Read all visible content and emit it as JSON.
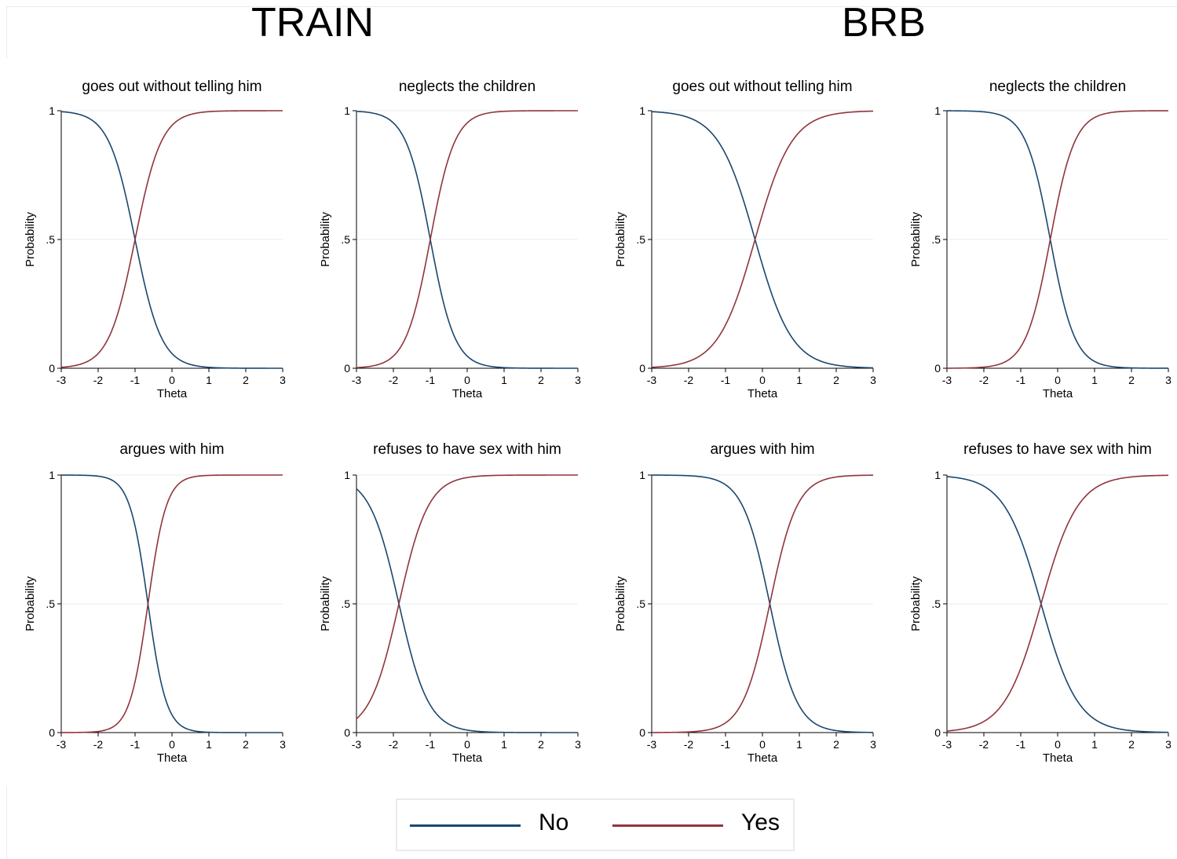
{
  "groups": [
    "TRAIN",
    "BRB"
  ],
  "legend": {
    "items": [
      {
        "label": "No",
        "color": "#1a476f"
      },
      {
        "label": "Yes",
        "color": "#90353b"
      }
    ]
  },
  "chart_data": [
    {
      "type": "line",
      "group": "TRAIN",
      "title": "goes out without telling him",
      "xlabel": "Theta",
      "ylabel": "Probability",
      "xlim": [
        -3,
        3
      ],
      "ylim": [
        0,
        1
      ],
      "xticks": [
        "-3",
        "-2",
        "-1",
        "0",
        "1",
        "2",
        "3"
      ],
      "yticks": [
        "0",
        ".5",
        "1"
      ],
      "series": [
        {
          "name": "No",
          "curve": "decreasing",
          "a": 2.8,
          "b": -1.0
        },
        {
          "name": "Yes",
          "curve": "increasing",
          "a": 2.8,
          "b": -1.0
        }
      ]
    },
    {
      "type": "line",
      "group": "TRAIN",
      "title": "neglects the children",
      "xlabel": "Theta",
      "ylabel": "Probability",
      "xlim": [
        -3,
        3
      ],
      "ylim": [
        0,
        1
      ],
      "xticks": [
        "-3",
        "-2",
        "-1",
        "0",
        "1",
        "2",
        "3"
      ],
      "yticks": [
        "0",
        ".5",
        "1"
      ],
      "series": [
        {
          "name": "No",
          "curve": "decreasing",
          "a": 3.0,
          "b": -1.0
        },
        {
          "name": "Yes",
          "curve": "increasing",
          "a": 3.0,
          "b": -1.0
        }
      ]
    },
    {
      "type": "line",
      "group": "BRB",
      "title": "goes out without telling him",
      "xlabel": "Theta",
      "ylabel": "Probability",
      "xlim": [
        -3,
        3
      ],
      "ylim": [
        0,
        1
      ],
      "xticks": [
        "-3",
        "-2",
        "-1",
        "0",
        "1",
        "2",
        "3"
      ],
      "yticks": [
        "0",
        ".5",
        "1"
      ],
      "series": [
        {
          "name": "No",
          "curve": "decreasing",
          "a": 2.0,
          "b": -0.2
        },
        {
          "name": "Yes",
          "curve": "increasing",
          "a": 2.0,
          "b": -0.2
        }
      ]
    },
    {
      "type": "line",
      "group": "BRB",
      "title": "neglects the children",
      "xlabel": "Theta",
      "ylabel": "Probability",
      "xlim": [
        -3,
        3
      ],
      "ylim": [
        0,
        1
      ],
      "xticks": [
        "-3",
        "-2",
        "-1",
        "0",
        "1",
        "2",
        "3"
      ],
      "yticks": [
        "0",
        ".5",
        "1"
      ],
      "series": [
        {
          "name": "No",
          "curve": "decreasing",
          "a": 3.0,
          "b": -0.2
        },
        {
          "name": "Yes",
          "curve": "increasing",
          "a": 3.0,
          "b": -0.2
        }
      ]
    },
    {
      "type": "line",
      "group": "TRAIN",
      "title": "argues with him",
      "xlabel": "Theta",
      "ylabel": "Probability",
      "xlim": [
        -3,
        3
      ],
      "ylim": [
        0,
        1
      ],
      "xticks": [
        "-3",
        "-2",
        "-1",
        "0",
        "1",
        "2",
        "3"
      ],
      "yticks": [
        "0",
        ".5",
        "1"
      ],
      "series": [
        {
          "name": "No",
          "curve": "decreasing",
          "a": 4.0,
          "b": -0.65
        },
        {
          "name": "Yes",
          "curve": "increasing",
          "a": 4.0,
          "b": -0.65
        }
      ]
    },
    {
      "type": "line",
      "group": "TRAIN",
      "title": "refuses to have sex with him",
      "xlabel": "Theta",
      "ylabel": "Probability",
      "xlim": [
        -3,
        3
      ],
      "ylim": [
        0,
        1
      ],
      "xticks": [
        "-3",
        "-2",
        "-1",
        "0",
        "1",
        "2",
        "3"
      ],
      "yticks": [
        "0",
        ".5",
        "1"
      ],
      "series": [
        {
          "name": "No",
          "curve": "decreasing",
          "a": 2.5,
          "b": -1.85
        },
        {
          "name": "Yes",
          "curve": "increasing",
          "a": 2.5,
          "b": -1.85
        }
      ]
    },
    {
      "type": "line",
      "group": "BRB",
      "title": "argues with him",
      "xlabel": "Theta",
      "ylabel": "Probability",
      "xlim": [
        -3,
        3
      ],
      "ylim": [
        0,
        1
      ],
      "xticks": [
        "-3",
        "-2",
        "-1",
        "0",
        "1",
        "2",
        "3"
      ],
      "yticks": [
        "0",
        ".5",
        "1"
      ],
      "series": [
        {
          "name": "No",
          "curve": "decreasing",
          "a": 2.7,
          "b": 0.2
        },
        {
          "name": "Yes",
          "curve": "increasing",
          "a": 2.7,
          "b": 0.2
        }
      ]
    },
    {
      "type": "line",
      "group": "BRB",
      "title": "refuses to have sex with him",
      "xlabel": "Theta",
      "ylabel": "Probability",
      "xlim": [
        -3,
        3
      ],
      "ylim": [
        0,
        1
      ],
      "xticks": [
        "-3",
        "-2",
        "-1",
        "0",
        "1",
        "2",
        "3"
      ],
      "yticks": [
        "0",
        ".5",
        "1"
      ],
      "series": [
        {
          "name": "No",
          "curve": "decreasing",
          "a": 2.0,
          "b": -0.45
        },
        {
          "name": "Yes",
          "curve": "increasing",
          "a": 2.0,
          "b": -0.45
        }
      ]
    }
  ]
}
